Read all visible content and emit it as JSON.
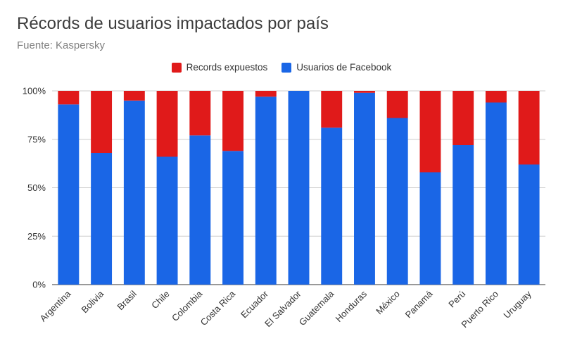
{
  "chart_data": {
    "type": "bar",
    "stacked": true,
    "title": "Récords de usuarios impactados por país",
    "subtitle": "Fuente: Kaspersky",
    "categories": [
      "Argentina",
      "Bolivia",
      "Brasil",
      "Chile",
      "Colombia",
      "Costa Rica",
      "Ecuador",
      "El Salvador",
      "Guatemala",
      "Honduras",
      "México",
      "Panamá",
      "Perú",
      "Puerto Rico",
      "Uruguay"
    ],
    "series": [
      {
        "name": "Usuarios de Facebook",
        "color": "#1a66e6",
        "values": [
          93,
          68,
          95,
          66,
          77,
          69,
          97,
          100,
          81,
          99,
          86,
          58,
          72,
          94,
          62
        ]
      },
      {
        "name": "Records expuestos",
        "color": "#e01a1a",
        "values": [
          7,
          32,
          5,
          34,
          23,
          31,
          3,
          0,
          19,
          1,
          14,
          42,
          28,
          6,
          38
        ]
      }
    ],
    "legend_order": [
      "Records expuestos",
      "Usuarios de Facebook"
    ],
    "legend_position": "top",
    "ylim": [
      0,
      100
    ],
    "yticks": [
      "0%",
      "25%",
      "50%",
      "75%",
      "100%"
    ],
    "grid": true
  }
}
